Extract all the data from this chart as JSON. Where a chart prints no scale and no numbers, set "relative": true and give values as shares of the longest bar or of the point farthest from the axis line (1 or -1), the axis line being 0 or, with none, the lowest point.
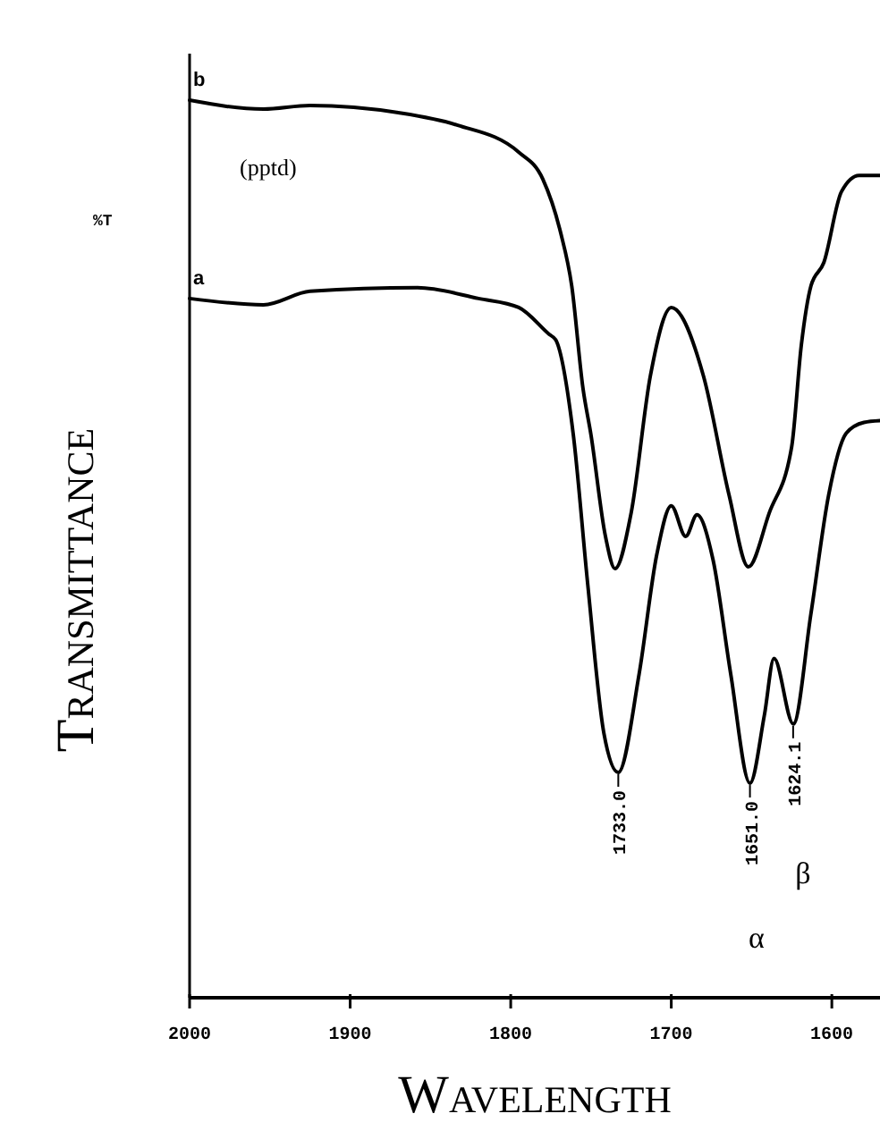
{
  "chart_data": {
    "type": "line",
    "relative": true,
    "xlabel": "Wavelength",
    "ylabel": "Transmittance",
    "xlim": [
      2000,
      1570
    ],
    "xticks": [
      2000,
      1900,
      1800,
      1700,
      1600
    ],
    "grid": false,
    "marker": "none",
    "line_style": "solid",
    "series": [
      {
        "name": "b",
        "color": "#000000",
        "x": [
          2000,
          1954,
          1925,
          1870,
          1833,
          1795,
          1780,
          1769,
          1762,
          1755,
          1750,
          1741,
          1735,
          1725,
          1713,
          1700,
          1680,
          1664,
          1652,
          1639,
          1625,
          1619,
          1613,
          1605,
          1594,
          1583,
          1570
        ],
        "values": [
          1.0,
          0.99,
          0.994,
          0.986,
          0.972,
          0.942,
          0.912,
          0.853,
          0.793,
          0.679,
          0.627,
          0.514,
          0.478,
          0.54,
          0.693,
          0.769,
          0.693,
          0.56,
          0.48,
          0.54,
          0.614,
          0.727,
          0.793,
          0.819,
          0.898,
          0.916,
          0.916
        ]
      },
      {
        "name": "a",
        "color": "#000000",
        "x": [
          2000,
          1954,
          1925,
          1858,
          1820,
          1795,
          1776,
          1772,
          1761,
          1752,
          1742,
          1733,
          1720,
          1709,
          1700,
          1691,
          1684,
          1674,
          1663,
          1651,
          1642,
          1636,
          1624,
          1613,
          1602,
          1591,
          1580,
          1570
        ],
        "values": [
          0.779,
          0.772,
          0.787,
          0.791,
          0.779,
          0.769,
          0.739,
          0.733,
          0.627,
          0.46,
          0.295,
          0.251,
          0.361,
          0.494,
          0.548,
          0.514,
          0.538,
          0.488,
          0.361,
          0.239,
          0.315,
          0.378,
          0.305,
          0.428,
          0.56,
          0.629,
          0.641,
          0.643
        ]
      }
    ],
    "annotations": [
      "%T",
      "(pptd)",
      {
        "text": "1733.0",
        "x": 1733,
        "y": 0.251
      },
      {
        "text": "1651.0",
        "x": 1651,
        "y": 0.239
      },
      {
        "text": "1624.1",
        "x": 1624.1,
        "y": 0.305
      },
      "α",
      "β"
    ]
  }
}
